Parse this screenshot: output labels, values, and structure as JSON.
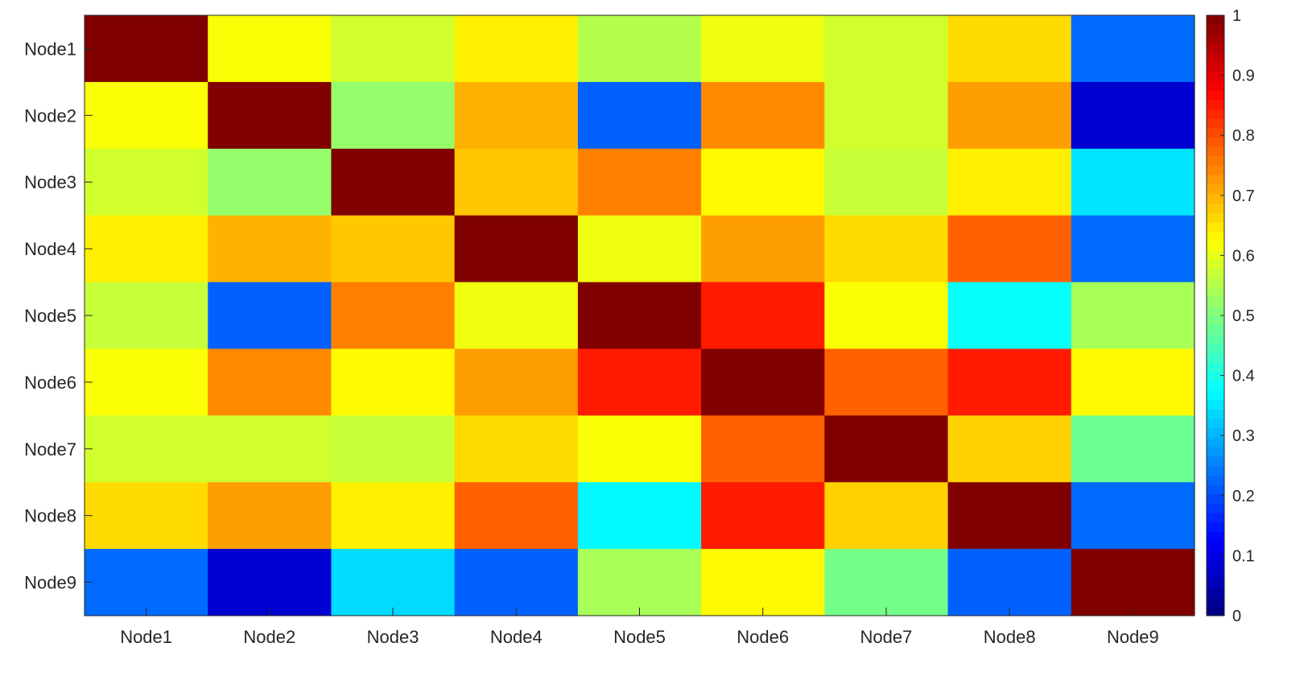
{
  "chart_data": {
    "type": "heatmap",
    "title": "",
    "xlabel": "",
    "ylabel": "",
    "x_categories": [
      "Node1",
      "Node2",
      "Node3",
      "Node4",
      "Node5",
      "Node6",
      "Node7",
      "Node8",
      "Node9"
    ],
    "y_categories": [
      "Node1",
      "Node2",
      "Node3",
      "Node4",
      "Node5",
      "Node6",
      "Node7",
      "Node8",
      "Node9"
    ],
    "values": [
      [
        1.0,
        0.62,
        0.58,
        0.64,
        0.55,
        0.61,
        0.58,
        0.66,
        0.23
      ],
      [
        0.62,
        1.0,
        0.52,
        0.7,
        0.22,
        0.74,
        0.58,
        0.72,
        0.08
      ],
      [
        0.58,
        0.52,
        1.0,
        0.68,
        0.75,
        0.63,
        0.57,
        0.64,
        0.35
      ],
      [
        0.64,
        0.7,
        0.68,
        1.0,
        0.61,
        0.72,
        0.66,
        0.78,
        0.23
      ],
      [
        0.57,
        0.22,
        0.75,
        0.61,
        1.0,
        0.85,
        0.62,
        0.38,
        0.54
      ],
      [
        0.62,
        0.74,
        0.63,
        0.72,
        0.85,
        1.0,
        0.78,
        0.85,
        0.63
      ],
      [
        0.58,
        0.58,
        0.57,
        0.66,
        0.62,
        0.78,
        1.0,
        0.67,
        0.48
      ],
      [
        0.66,
        0.72,
        0.64,
        0.78,
        0.37,
        0.85,
        0.67,
        1.0,
        0.23
      ],
      [
        0.23,
        0.08,
        0.34,
        0.22,
        0.54,
        0.63,
        0.49,
        0.22,
        1.0
      ]
    ],
    "colormap": "jet",
    "clim": [
      0,
      1
    ],
    "colorbar": {
      "position": "right",
      "ticks": [
        0,
        0.1,
        0.2,
        0.3,
        0.4,
        0.5,
        0.6,
        0.7,
        0.8,
        0.9,
        1
      ],
      "tick_labels": [
        "0",
        "0.1",
        "0.2",
        "0.3",
        "0.4",
        "0.5",
        "0.6",
        "0.7",
        "0.8",
        "0.9",
        "1"
      ]
    },
    "grid": false,
    "legend": "none"
  }
}
